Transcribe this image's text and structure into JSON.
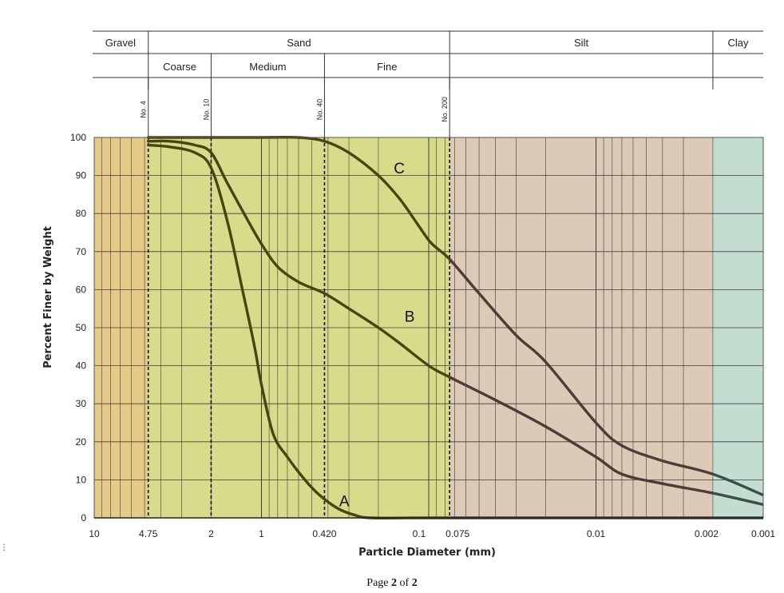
{
  "chart_data": {
    "type": "line",
    "xlabel": "Particle Diameter (mm)",
    "ylabel": "Percent Finer by Weight",
    "x_scale": "log",
    "x_reversed": true,
    "xlim": [
      10,
      0.001
    ],
    "ylim": [
      0,
      100
    ],
    "y_ticks": [
      0,
      10,
      20,
      30,
      40,
      50,
      60,
      70,
      80,
      90,
      100
    ],
    "x_tick_labels": [
      {
        "value": 10,
        "label": "10"
      },
      {
        "value": 4.75,
        "label": "4.75"
      },
      {
        "value": 2,
        "label": "2"
      },
      {
        "value": 1,
        "label": "1"
      },
      {
        "value": 0.42,
        "label": "0.420"
      },
      {
        "value": 0.1,
        "label": "0.1"
      },
      {
        "value": 0.075,
        "label": "0.075"
      },
      {
        "value": 0.01,
        "label": "0.01"
      },
      {
        "value": 0.002,
        "label": "0.002"
      },
      {
        "value": 0.001,
        "label": "0.001"
      }
    ],
    "grid": true,
    "soil_zones": [
      {
        "name": "Gravel",
        "from": 10,
        "to": 4.75,
        "color": "#e3cb87"
      },
      {
        "name": "Sand",
        "from": 4.75,
        "to": 0.075,
        "color": "#d8db8a"
      },
      {
        "name": "Silt",
        "from": 0.075,
        "to": 0.002,
        "color": "#dcc9b6"
      },
      {
        "name": "Clay",
        "from": 0.002,
        "to": 0.001,
        "color": "#c3ddd0"
      }
    ],
    "classification_header": {
      "row1": [
        {
          "label": "Gravel",
          "from": 10,
          "to": 4.75
        },
        {
          "label": "Sand",
          "from": 4.75,
          "to": 0.075
        },
        {
          "label": "Silt",
          "from": 0.075,
          "to": 0.002
        },
        {
          "label": "Clay",
          "from": 0.002,
          "to": 0.001
        }
      ],
      "row2": [
        {
          "label": "Coarse",
          "from": 4.75,
          "to": 2
        },
        {
          "label": "Medium",
          "from": 2,
          "to": 0.42
        },
        {
          "label": "Fine",
          "from": 0.42,
          "to": 0.075
        }
      ]
    },
    "sieves": [
      {
        "label": "No. 4",
        "value": 4.75
      },
      {
        "label": "No. 10",
        "value": 2
      },
      {
        "label": "No. 40",
        "value": 0.42
      },
      {
        "label": "No. 200",
        "value": 0.075
      }
    ],
    "series": [
      {
        "name": "A",
        "points": [
          [
            4.75,
            98
          ],
          [
            3.5,
            97.5
          ],
          [
            2.5,
            96
          ],
          [
            2,
            92
          ],
          [
            1.6,
            78
          ],
          [
            1.3,
            60
          ],
          [
            1.1,
            45
          ],
          [
            1,
            35
          ],
          [
            0.85,
            22
          ],
          [
            0.7,
            16
          ],
          [
            0.55,
            10
          ],
          [
            0.45,
            6
          ],
          [
            0.35,
            2.5
          ],
          [
            0.28,
            0.8
          ],
          [
            0.22,
            0
          ],
          [
            0.1,
            0
          ],
          [
            0.01,
            0
          ],
          [
            0.001,
            0
          ]
        ]
      },
      {
        "name": "B",
        "points": [
          [
            4.75,
            99
          ],
          [
            3.5,
            99
          ],
          [
            2.5,
            98
          ],
          [
            2,
            96
          ],
          [
            1.6,
            88
          ],
          [
            1.2,
            78
          ],
          [
            1,
            72
          ],
          [
            0.8,
            66
          ],
          [
            0.6,
            62
          ],
          [
            0.42,
            59
          ],
          [
            0.3,
            55
          ],
          [
            0.2,
            50
          ],
          [
            0.15,
            46
          ],
          [
            0.1,
            40
          ],
          [
            0.075,
            37
          ],
          [
            0.04,
            31
          ],
          [
            0.02,
            24
          ],
          [
            0.01,
            16
          ],
          [
            0.007,
            11.5
          ],
          [
            0.004,
            9
          ],
          [
            0.002,
            6.5
          ],
          [
            0.001,
            3.5
          ]
        ]
      },
      {
        "name": "C",
        "points": [
          [
            4.75,
            100
          ],
          [
            1,
            100
          ],
          [
            0.6,
            100
          ],
          [
            0.42,
            99
          ],
          [
            0.3,
            96
          ],
          [
            0.2,
            90
          ],
          [
            0.15,
            84
          ],
          [
            0.12,
            78
          ],
          [
            0.1,
            73
          ],
          [
            0.09,
            71
          ],
          [
            0.075,
            68
          ],
          [
            0.05,
            59
          ],
          [
            0.03,
            48
          ],
          [
            0.02,
            41
          ],
          [
            0.01,
            25
          ],
          [
            0.007,
            19
          ],
          [
            0.004,
            15
          ],
          [
            0.002,
            11.5
          ],
          [
            0.001,
            6
          ]
        ]
      }
    ],
    "series_labels": [
      {
        "text": "C",
        "x": 0.15,
        "y": 92
      },
      {
        "text": "B",
        "x": 0.13,
        "y": 53
      },
      {
        "text": "A",
        "x": 0.32,
        "y": 4.5
      }
    ]
  },
  "footer": {
    "prefix": "Page ",
    "page": "2",
    "middle": " of ",
    "total": "2"
  },
  "colors": {
    "curve": "#4a4410",
    "curve_silt": "#4b3d36",
    "curve_clay": "#3a4f47",
    "grid": "#3c3c3c",
    "sieve_line": "#111111"
  }
}
